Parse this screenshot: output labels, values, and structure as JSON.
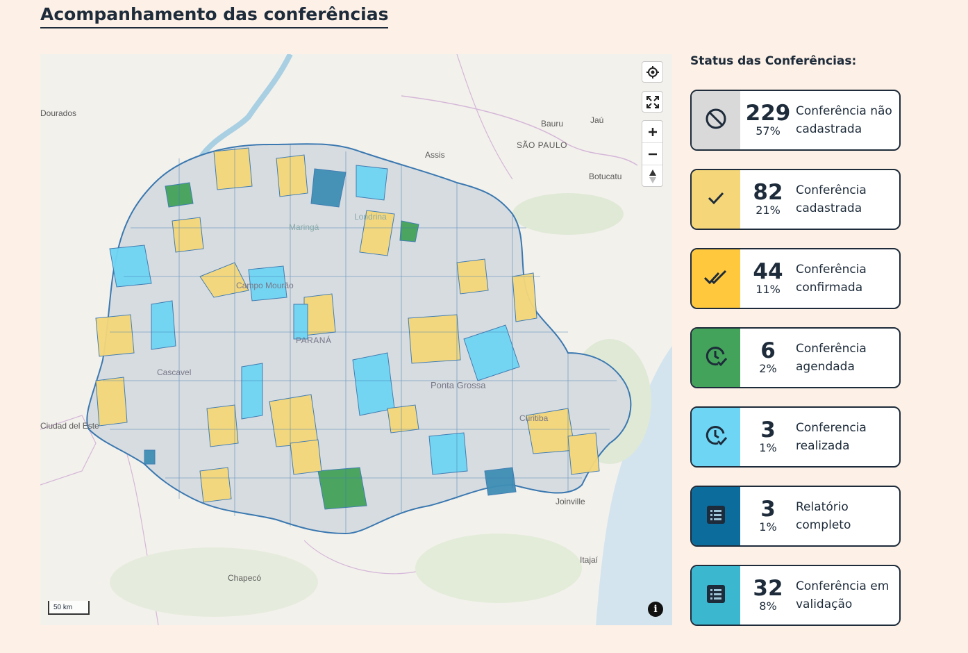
{
  "page": {
    "title": "Acompanhamento das conferências"
  },
  "map": {
    "labels": {
      "dourados": "Dourados",
      "bauru": "Bauru",
      "jau": "Jaú",
      "assis": "Assis",
      "sao_paulo": "SÃO PAULO",
      "botucatu": "Botucatu",
      "maringa": "Maringá",
      "londrina": "Londrina",
      "campo_mourao": "Campo Mourão",
      "parana": "PARANÁ",
      "cascavel": "Cascavel",
      "ponta_grossa": "Ponta Grossa",
      "ciudad_del_este": "Ciudad del Este",
      "curitiba": "Curitiba",
      "joinville": "Joinville",
      "itajai": "Itajaí",
      "chapeco": "Chapecó"
    },
    "scale_label": "50 km",
    "info_label": "i",
    "controls": [
      "locate-icon",
      "fullscreen-icon",
      "zoom-in-icon",
      "zoom-out-icon",
      "compass-icon"
    ]
  },
  "status": {
    "heading": "Status das Conferências:",
    "items": [
      {
        "count": "229",
        "pct": "57%",
        "label": "Conferência não cadastrada",
        "color": "#d9d9d9",
        "icon": "not-registered-icon"
      },
      {
        "count": "82",
        "pct": "21%",
        "label": "Conferência cadastrada",
        "color": "#f5d77a",
        "icon": "check-icon"
      },
      {
        "count": "44",
        "pct": "11%",
        "label": "Conferência confirmada",
        "color": "#ffc83d",
        "icon": "double-check-icon"
      },
      {
        "count": "6",
        "pct": "2%",
        "label": "Conferência agendada",
        "color": "#44a35a",
        "icon": "clock-check-icon"
      },
      {
        "count": "3",
        "pct": "1%",
        "label": "Conferencia realizada",
        "color": "#6fd5f4",
        "icon": "clock-check-icon"
      },
      {
        "count": "3",
        "pct": "1%",
        "label": "Relatório completo",
        "color": "#0c6c9c",
        "icon": "report-list-icon"
      },
      {
        "count": "32",
        "pct": "8%",
        "label": "Conferência em validação",
        "color": "#3bb8d0",
        "icon": "report-list-icon"
      }
    ]
  }
}
